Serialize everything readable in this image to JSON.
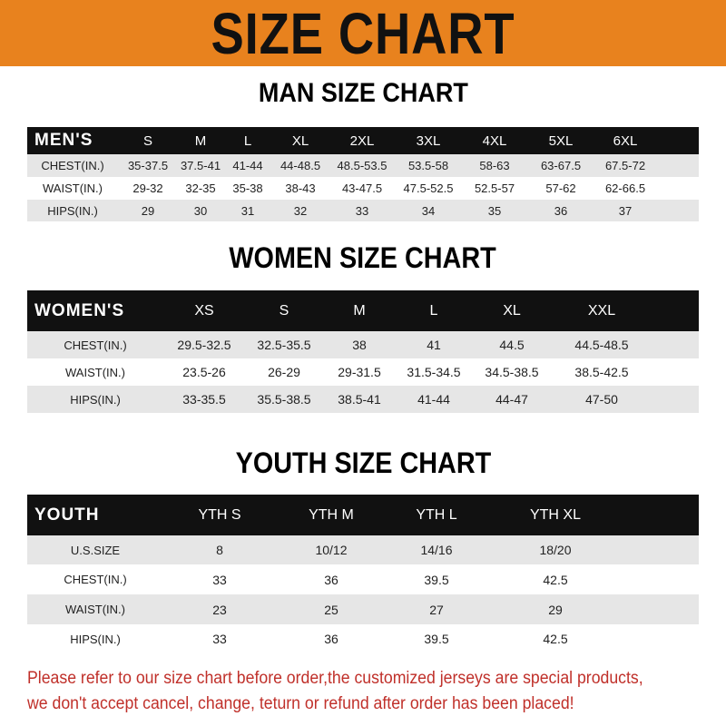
{
  "banner": {
    "title": "SIZE CHART",
    "color": "#e8821e"
  },
  "men": {
    "title": "MAN SIZE CHART",
    "header": [
      "MEN'S",
      "S",
      "M",
      "L",
      "XL",
      "2XL",
      "3XL",
      "4XL",
      "5XL",
      "6XL"
    ],
    "rows": [
      [
        "CHEST(IN.)",
        "35-37.5",
        "37.5-41",
        "41-44",
        "44-48.5",
        "48.5-53.5",
        "53.5-58",
        "58-63",
        "63-67.5",
        "67.5-72"
      ],
      [
        "WAIST(IN.)",
        "29-32",
        "32-35",
        "35-38",
        "38-43",
        "43-47.5",
        "47.5-52.5",
        "52.5-57",
        "57-62",
        "62-66.5"
      ],
      [
        "HIPS(IN.)",
        "29",
        "30",
        "31",
        "32",
        "33",
        "34",
        "35",
        "36",
        "37"
      ]
    ]
  },
  "women": {
    "title": "WOMEN SIZE CHART",
    "header": [
      "WOMEN'S",
      "XS",
      "S",
      "M",
      "L",
      "XL",
      "XXL"
    ],
    "rows": [
      [
        "CHEST(IN.)",
        "29.5-32.5",
        "32.5-35.5",
        "38",
        "41",
        "44.5",
        "44.5-48.5"
      ],
      [
        "WAIST(IN.)",
        "23.5-26",
        "26-29",
        "29-31.5",
        "31.5-34.5",
        "34.5-38.5",
        "38.5-42.5"
      ],
      [
        "HIPS(IN.)",
        "33-35.5",
        "35.5-38.5",
        "38.5-41",
        "41-44",
        "44-47",
        "47-50"
      ]
    ]
  },
  "youth": {
    "title": "YOUTH SIZE CHART",
    "header": [
      "YOUTH",
      "YTH S",
      "YTH M",
      "YTH L",
      "YTH XL"
    ],
    "rows": [
      [
        "U.S.SIZE",
        "8",
        "10/12",
        "14/16",
        "18/20"
      ],
      [
        "CHEST(IN.)",
        "33",
        "36",
        "39.5",
        "42.5"
      ],
      [
        "WAIST(IN.)",
        "23",
        "25",
        "27",
        "29"
      ],
      [
        "HIPS(IN.)",
        "33",
        "36",
        "39.5",
        "42.5"
      ]
    ]
  },
  "note": {
    "line1": "Please refer to our size chart before order,the customized jerseys are special products,",
    "line2": "we don't accept cancel, change, teturn or refund after order has been placed!",
    "color": "#c0302a"
  }
}
